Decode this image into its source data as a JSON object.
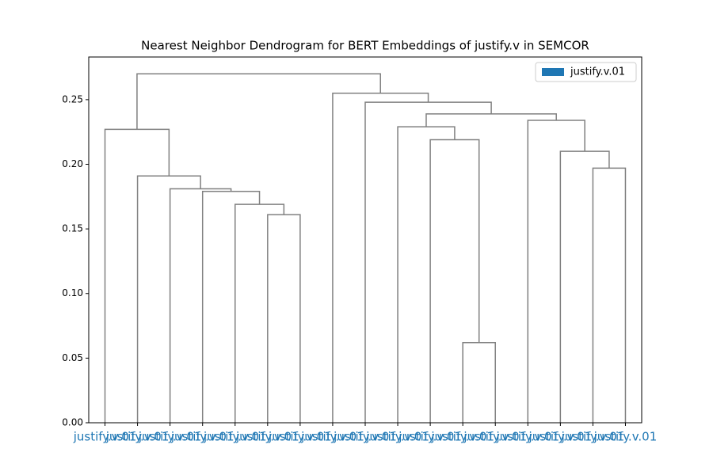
{
  "chart_data": {
    "type": "dendrogram",
    "title": "Nearest Neighbor Dendrogram for BERT Embeddings of justify.v in SEMCOR",
    "leaves": [
      "justify.v.01",
      "justify.v.01",
      "justify.v.01",
      "justify.v.01",
      "justify.v.01",
      "justify.v.01",
      "justify.v.01",
      "justify.v.01",
      "justify.v.01",
      "justify.v.01",
      "justify.v.01",
      "justify.v.01",
      "justify.v.01",
      "justify.v.01",
      "justify.v.01",
      "justify.v.01",
      "justify.v.01"
    ],
    "merges": [
      {
        "children": [
          11,
          12
        ],
        "height": 0.062
      },
      {
        "children": [
          5,
          6
        ],
        "height": 0.161
      },
      {
        "children": [
          4,
          18
        ],
        "height": 0.169
      },
      {
        "children": [
          3,
          19
        ],
        "height": 0.179
      },
      {
        "children": [
          2,
          20
        ],
        "height": 0.181
      },
      {
        "children": [
          1,
          21
        ],
        "height": 0.191
      },
      {
        "children": [
          15,
          16
        ],
        "height": 0.197
      },
      {
        "children": [
          14,
          23
        ],
        "height": 0.21
      },
      {
        "children": [
          10,
          17
        ],
        "height": 0.219
      },
      {
        "children": [
          0,
          22
        ],
        "height": 0.227
      },
      {
        "children": [
          9,
          25
        ],
        "height": 0.229
      },
      {
        "children": [
          13,
          24
        ],
        "height": 0.234
      },
      {
        "children": [
          27,
          28
        ],
        "height": 0.239
      },
      {
        "children": [
          8,
          29
        ],
        "height": 0.248
      },
      {
        "children": [
          7,
          30
        ],
        "height": 0.255
      },
      {
        "children": [
          26,
          31
        ],
        "height": 0.27
      }
    ],
    "link_color": "#808080",
    "series": [
      {
        "name": "justify.v.01",
        "color": "#1f77b4"
      }
    ],
    "ylim": [
      0,
      0.283
    ],
    "yticks": [
      {
        "value": 0,
        "label": "0.00"
      },
      {
        "value": 0.05,
        "label": "0.05"
      },
      {
        "value": 0.1,
        "label": "0.10"
      },
      {
        "value": 0.15,
        "label": "0.15"
      },
      {
        "value": 0.2,
        "label": "0.20"
      },
      {
        "value": 0.25,
        "label": "0.25"
      }
    ],
    "legend": "upper right"
  }
}
